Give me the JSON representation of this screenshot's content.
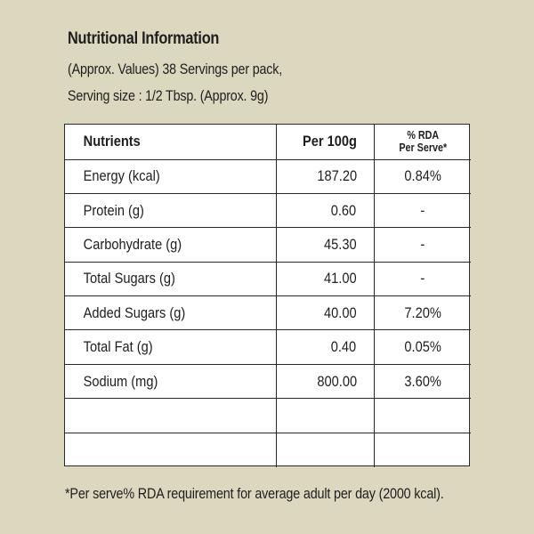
{
  "title": "Nutritional Information",
  "subtitle_line1": "(Approx. Values) 38 Servings per pack,",
  "subtitle_line2": "Serving size : 1/2 Tbsp. (Approx. 9g)",
  "table": {
    "headers": {
      "nutrients": "Nutrients",
      "per100g": "Per 100g",
      "rda_line1": "% RDA",
      "rda_line2": "Per Serve*"
    },
    "rows": [
      {
        "nutrient": "Energy (kcal)",
        "per100g": "187.20",
        "rda": "0.84%"
      },
      {
        "nutrient": "Protein (g)",
        "per100g": "0.60",
        "rda": "-"
      },
      {
        "nutrient": "Carbohydrate (g)",
        "per100g": "45.30",
        "rda": "-"
      },
      {
        "nutrient": "Total Sugars (g)",
        "per100g": "41.00",
        "rda": "-"
      },
      {
        "nutrient": "Added Sugars (g)",
        "per100g": "40.00",
        "rda": "7.20%"
      },
      {
        "nutrient": "Total Fat (g)",
        "per100g": "0.40",
        "rda": "0.05%"
      },
      {
        "nutrient": "Sodium (mg)",
        "per100g": "800.00",
        "rda": "3.60%"
      },
      {
        "nutrient": "",
        "per100g": "",
        "rda": ""
      },
      {
        "nutrient": "",
        "per100g": "",
        "rda": ""
      }
    ]
  },
  "footnote": "*Per serve% RDA requirement for average adult per day (2000 kcal).",
  "colors": {
    "background": "#dcd8c0",
    "table_background": "#ffffff",
    "text": "#1e1e1e"
  }
}
